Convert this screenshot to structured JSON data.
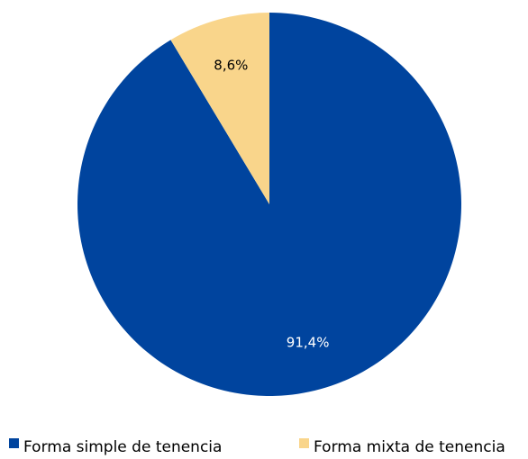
{
  "chart_data": {
    "type": "pie",
    "categories": [
      "Forma simple de tenencia",
      "Forma mixta de tenencia"
    ],
    "values": [
      91.4,
      8.6
    ],
    "value_labels": [
      "91,4%",
      "8,6%"
    ],
    "colors": [
      "#00449e",
      "#f9d58b"
    ]
  }
}
